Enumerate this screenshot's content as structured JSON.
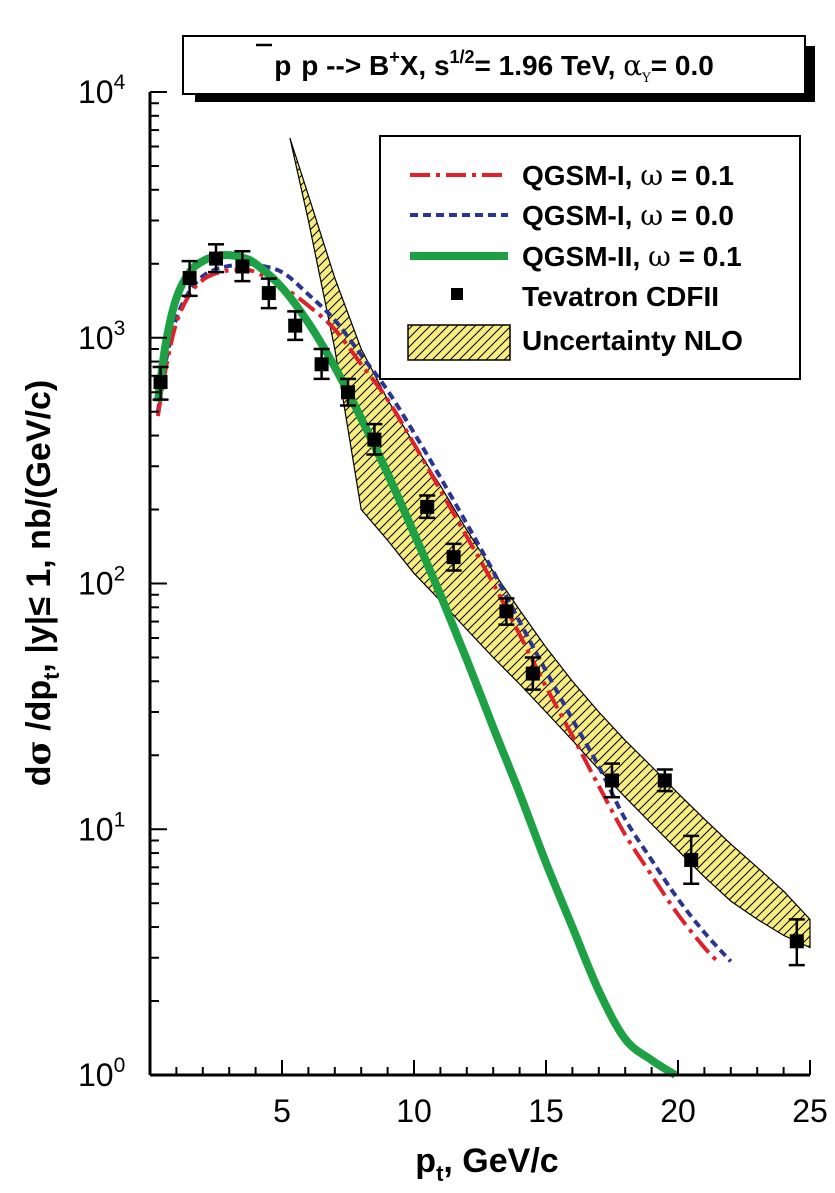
{
  "chart_data": {
    "type": "line",
    "title": {
      "proc_a": "p",
      "proc_b": "p",
      "proc_c": " --> B",
      "proc_sup": "+",
      "proc_d": "X, s",
      "energy_sup": "1/2",
      "energy": "= 1.96 TeV, ",
      "alpha_sym": "α",
      "alpha_sub": "Y",
      "alpha_val": "= 0.0"
    },
    "xlabel": {
      "main": "p",
      "sub": "t",
      "rest": ", GeV/c"
    },
    "ylabel": {
      "a": "d",
      "sigma": "σ",
      "b": " /dp",
      "sub": "t",
      "c": ", |y|",
      "le": "≤",
      "d": " 1, nb/(GeV/c)"
    },
    "xlim": [
      0,
      25
    ],
    "ylim": [
      1,
      10000
    ],
    "yscale": "log",
    "x_ticks": [
      5,
      10,
      15,
      20,
      25
    ],
    "x_tick_labels": [
      "5",
      "10",
      "15",
      "20",
      "25"
    ],
    "y_ticks": [
      {
        "value": 1,
        "base": "10",
        "exp": "0"
      },
      {
        "value": 10,
        "base": "10",
        "exp": "1"
      },
      {
        "value": 100,
        "base": "10",
        "exp": "2"
      },
      {
        "value": 1000,
        "base": "10",
        "exp": "3"
      },
      {
        "value": 10000,
        "base": "10",
        "exp": "4"
      }
    ],
    "legend_position": "top-right",
    "series": [
      {
        "name": "QGSM-I, ω = 0.1",
        "legend_text": "QGSM-I, ",
        "legend_omega": "ω",
        "legend_value": " = 0.1",
        "style": "dashdot",
        "color": "#e0202a",
        "x": [
          0.3,
          0.6,
          1.0,
          1.5,
          2.0,
          2.5,
          3.0,
          3.5,
          4.0,
          5.0,
          6.0,
          7.0,
          8.0,
          9.0,
          10.0,
          11.0,
          12.0,
          13.0,
          14.0,
          15.0,
          16.0,
          17.0,
          18.0,
          19.0,
          20.0,
          21.0,
          21.5
        ],
        "y": [
          480,
          750,
          1150,
          1500,
          1720,
          1830,
          1880,
          1890,
          1850,
          1620,
          1350,
          1080,
          780,
          560,
          370,
          240,
          155,
          100,
          62,
          38,
          24,
          15,
          9.5,
          6.5,
          4.5,
          3.3,
          2.9
        ]
      },
      {
        "name": "QGSM-I, ω = 0.0",
        "legend_text": "QGSM-I, ",
        "legend_omega": "ω",
        "legend_value": " = 0.0",
        "style": "dashed",
        "color": "#2a3593",
        "x": [
          0.3,
          0.6,
          1.0,
          1.5,
          2.0,
          2.5,
          3.0,
          3.5,
          4.0,
          5.0,
          6.0,
          7.0,
          8.0,
          9.0,
          10.0,
          11.0,
          12.0,
          13.0,
          14.0,
          15.0,
          16.0,
          17.0,
          18.0,
          19.0,
          20.0,
          21.0,
          22.0
        ],
        "y": [
          500,
          800,
          1200,
          1550,
          1780,
          1900,
          1960,
          1990,
          1980,
          1850,
          1500,
          1180,
          850,
          610,
          410,
          270,
          175,
          112,
          70,
          44,
          28,
          18,
          11,
          7.5,
          5.2,
          3.8,
          2.9
        ]
      },
      {
        "name": "QGSM-II, ω = 0.1",
        "legend_text": "QGSM-II, ",
        "legend_omega": "ω",
        "legend_value": " = 0.1",
        "style": "solid-thick",
        "color": "#1da144",
        "x": [
          0.3,
          0.6,
          1.0,
          1.5,
          2.0,
          2.5,
          3.0,
          3.5,
          4.0,
          5.0,
          6.0,
          7.0,
          8.0,
          9.0,
          10.0,
          11.0,
          12.0,
          13.0,
          14.0,
          15.0,
          16.0,
          17.0,
          18.0,
          19.0,
          19.9
        ],
        "y": [
          550,
          950,
          1450,
          1850,
          2050,
          2150,
          2170,
          2120,
          2000,
          1600,
          1150,
          760,
          470,
          280,
          160,
          90,
          49,
          26,
          14,
          7.3,
          4.0,
          2.2,
          1.4,
          1.15,
          1.0
        ]
      },
      {
        "name": "Tevatron CDFII",
        "legend_text": "Tevatron CDFII",
        "style": "markers",
        "color": "#000000",
        "points": [
          {
            "x": 0.4,
            "y": 660,
            "lo": 560,
            "hi": 760
          },
          {
            "x": 1.5,
            "y": 1750,
            "lo": 1480,
            "hi": 2050
          },
          {
            "x": 2.5,
            "y": 2100,
            "lo": 1850,
            "hi": 2400
          },
          {
            "x": 3.5,
            "y": 1950,
            "lo": 1700,
            "hi": 2250
          },
          {
            "x": 4.5,
            "y": 1520,
            "lo": 1320,
            "hi": 1740
          },
          {
            "x": 5.5,
            "y": 1120,
            "lo": 980,
            "hi": 1280
          },
          {
            "x": 6.5,
            "y": 780,
            "lo": 680,
            "hi": 900
          },
          {
            "x": 7.5,
            "y": 600,
            "lo": 530,
            "hi": 680
          },
          {
            "x": 8.5,
            "y": 385,
            "lo": 335,
            "hi": 445
          },
          {
            "x": 10.5,
            "y": 205,
            "lo": 185,
            "hi": 228
          },
          {
            "x": 11.5,
            "y": 128,
            "lo": 113,
            "hi": 145
          },
          {
            "x": 13.5,
            "y": 77,
            "lo": 68,
            "hi": 87
          },
          {
            "x": 14.5,
            "y": 43,
            "lo": 37,
            "hi": 50
          },
          {
            "x": 17.5,
            "y": 15.8,
            "lo": 13.5,
            "hi": 18.5
          },
          {
            "x": 19.5,
            "y": 15.8,
            "lo": 14.3,
            "hi": 17.5
          },
          {
            "x": 20.5,
            "y": 7.5,
            "lo": 6.0,
            "hi": 9.4
          },
          {
            "x": 24.5,
            "y": 3.5,
            "lo": 2.8,
            "hi": 4.3
          }
        ]
      },
      {
        "name": "Uncertainty NLO",
        "legend_text": "Uncertainty NLO",
        "style": "band-hatched",
        "color": "#f7ee7e",
        "x": [
          5.3,
          6.0,
          7.0,
          8.0,
          9.0,
          10.0,
          11.0,
          12.0,
          13.0,
          14.0,
          15.0,
          16.0,
          17.0,
          18.0,
          19.0,
          20.0,
          21.0,
          22.0,
          23.0,
          24.0,
          25.0
        ],
        "upper": [
          6500,
          3800,
          1750,
          900,
          560,
          370,
          250,
          165,
          112,
          78,
          55,
          40,
          30,
          23,
          18,
          14,
          11,
          8.7,
          7.0,
          5.6,
          4.3
        ],
        "lower": [
          6500,
          3000,
          900,
          200,
          150,
          110,
          85,
          65,
          50,
          39,
          30,
          23,
          17.5,
          13.5,
          10.5,
          8.2,
          6.4,
          5.1,
          4.3,
          3.7,
          3.3
        ]
      }
    ]
  }
}
